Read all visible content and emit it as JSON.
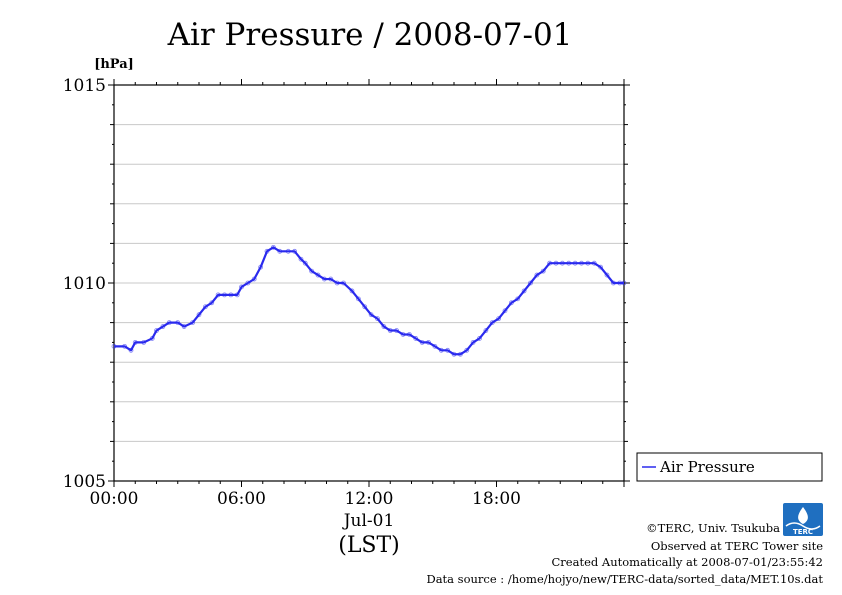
{
  "chart_data": {
    "type": "line",
    "title": "Air Pressure / 2008-07-01",
    "ylabel": "[hPa]",
    "xlabel": "(LST)",
    "ylim": [
      1005,
      1015
    ],
    "xlim": [
      0,
      24
    ],
    "y_ticks": [
      "1005",
      "1010",
      "1015"
    ],
    "x_ticks": [
      "00:00",
      "06:00",
      "12:00",
      "18:00"
    ],
    "x_sublabel": "Jul-01",
    "grid": true,
    "legend_position": "right",
    "series": [
      {
        "name": "Air Pressure",
        "color": "#2a2aee",
        "x": [
          0,
          0.5,
          0.8,
          1.0,
          1.4,
          1.8,
          2.0,
          2.3,
          2.6,
          3.0,
          3.3,
          3.7,
          4.0,
          4.3,
          4.6,
          4.9,
          5.2,
          5.5,
          5.8,
          6.0,
          6.3,
          6.6,
          6.9,
          7.2,
          7.5,
          7.8,
          8.2,
          8.5,
          8.8,
          9.0,
          9.3,
          9.6,
          9.9,
          10.2,
          10.5,
          10.8,
          11.2,
          11.5,
          11.8,
          12.1,
          12.4,
          12.7,
          13.0,
          13.3,
          13.6,
          13.9,
          14.2,
          14.5,
          14.8,
          15.1,
          15.4,
          15.7,
          16.0,
          16.3,
          16.6,
          16.9,
          17.2,
          17.5,
          17.8,
          18.1,
          18.4,
          18.7,
          19.0,
          19.3,
          19.6,
          19.9,
          20.2,
          20.5,
          20.8,
          21.1,
          21.4,
          21.7,
          22.0,
          22.3,
          22.6,
          22.9,
          23.2,
          23.5,
          23.8,
          24.0
        ],
        "y": [
          1008.4,
          1008.4,
          1008.3,
          1008.5,
          1008.5,
          1008.6,
          1008.8,
          1008.9,
          1009.0,
          1009.0,
          1008.9,
          1009.0,
          1009.2,
          1009.4,
          1009.5,
          1009.7,
          1009.7,
          1009.7,
          1009.7,
          1009.9,
          1010.0,
          1010.1,
          1010.4,
          1010.8,
          1010.9,
          1010.8,
          1010.8,
          1010.8,
          1010.6,
          1010.5,
          1010.3,
          1010.2,
          1010.1,
          1010.1,
          1010.0,
          1010.0,
          1009.8,
          1009.6,
          1009.4,
          1009.2,
          1009.1,
          1008.9,
          1008.8,
          1008.8,
          1008.7,
          1008.7,
          1008.6,
          1008.5,
          1008.5,
          1008.4,
          1008.3,
          1008.3,
          1008.2,
          1008.2,
          1008.3,
          1008.5,
          1008.6,
          1008.8,
          1009.0,
          1009.1,
          1009.3,
          1009.5,
          1009.6,
          1009.8,
          1010.0,
          1010.2,
          1010.3,
          1010.5,
          1010.5,
          1010.5,
          1010.5,
          1010.5,
          1010.5,
          1010.5,
          1010.5,
          1010.4,
          1010.2,
          1010.0,
          1010.0,
          1010.0
        ]
      }
    ]
  },
  "legend": {
    "label": "Air Pressure"
  },
  "footer": {
    "copyright": "©TERC, Univ. Tsukuba",
    "observed": "Observed at TERC Tower site",
    "created": "Created Automatically at 2008-07-01/23:55:42",
    "source": "Data source : /home/hojyo/new/TERC-data/sorted_data/MET.10s.dat",
    "logo_text": "TERC"
  }
}
